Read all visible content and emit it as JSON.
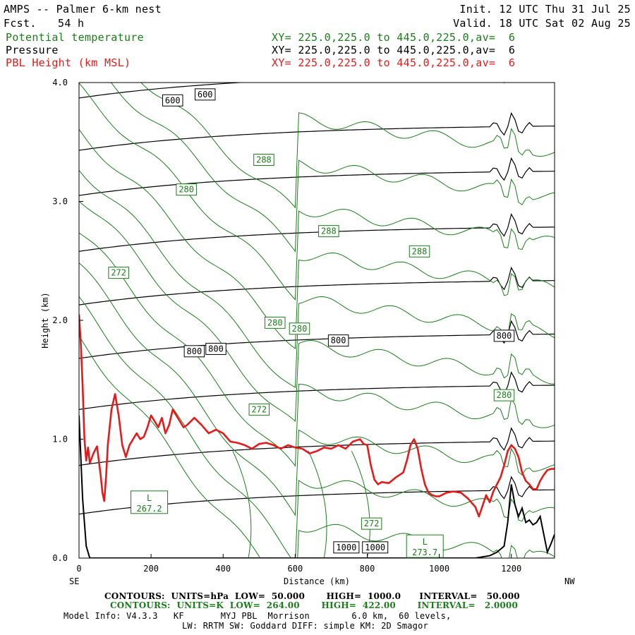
{
  "header": {
    "title": "AMPS -- Palmer 6-km nest",
    "fcst_label": "Fcst.",
    "fcst_value": "54 h",
    "init": "Init. 12 UTC Thu 31 Jul 25",
    "valid": "Valid. 18 UTC Sat 02 Aug 25"
  },
  "legend": [
    {
      "name": "Potential temperature",
      "xy": "XY= 225.0,225.0 to 445.0,225.0,av=  6",
      "color": "#1a7d1a"
    },
    {
      "name": "Pressure",
      "xy": "XY= 225.0,225.0 to 445.0,225.0,av=  6",
      "color": "#000000"
    },
    {
      "name": "PBL Height (km MSL)",
      "xy": "XY= 225.0,225.0 to 445.0,225.0,av=  6",
      "color": "#e51a1a"
    }
  ],
  "footer": {
    "line1": "CONTOURS:  UNITS=hPa  LOW=  50.000       HIGH=  1000.0      INTERVAL=   50.000",
    "line2": "CONTOURS:  UNITS=K  LOW=  264.00       HIGH=  422.00       INTERVAL=   2.0000",
    "line3": "Model Info: V4.3.3   KF       MYJ PBL  Morrison        6.0 km,  60 levels,",
    "line4": "LW: RRTM SW: Goddard DIFF: simple KM: 2D Smagor"
  },
  "chart_data": {
    "type": "line",
    "xlabel": "Distance (km)",
    "ylabel": "Height (km)",
    "xlim": [
      0,
      1320
    ],
    "ylim": [
      0,
      4.0
    ],
    "x_ticks": [
      0,
      200,
      400,
      600,
      800,
      1000,
      1200
    ],
    "y_ticks": [
      0.0,
      1.0,
      2.0,
      3.0,
      4.0
    ],
    "x_tick_labels": [
      "0",
      "200",
      "400",
      "600",
      "800",
      "1000",
      "1200"
    ],
    "y_tick_labels": [
      "0.0",
      "1.0",
      "2.0",
      "3.0",
      "4.0"
    ],
    "left_end_label": "SE",
    "right_end_label": "NW",
    "colors": {
      "pbl": "#e51a1a",
      "theta": "#1a7d1a",
      "pressure": "#000000"
    },
    "pbl_height": {
      "name": "PBL Height (km MSL)",
      "x": [
        0,
        5,
        10,
        15,
        20,
        25,
        30,
        40,
        50,
        60,
        65,
        70,
        75,
        80,
        85,
        90,
        100,
        110,
        120,
        130,
        140,
        150,
        160,
        170,
        180,
        190,
        200,
        210,
        220,
        230,
        240,
        250,
        260,
        270,
        280,
        290,
        300,
        320,
        340,
        360,
        380,
        400,
        420,
        440,
        460,
        480,
        500,
        520,
        540,
        560,
        580,
        600,
        620,
        640,
        660,
        680,
        700,
        720,
        740,
        760,
        780,
        790,
        800,
        810,
        820,
        830,
        840,
        860,
        880,
        900,
        910,
        920,
        930,
        940,
        950,
        960,
        970,
        980,
        990,
        1000,
        1020,
        1040,
        1060,
        1080,
        1100,
        1110,
        1120,
        1130,
        1140,
        1150,
        1160,
        1170,
        1180,
        1190,
        1200,
        1210,
        1220,
        1230,
        1240,
        1250,
        1260,
        1270,
        1280,
        1290,
        1300,
        1310,
        1320
      ],
      "y": [
        2.05,
        1.8,
        1.45,
        1.0,
        0.82,
        0.93,
        0.8,
        0.88,
        0.94,
        0.7,
        0.55,
        0.48,
        0.68,
        0.95,
        1.1,
        1.25,
        1.38,
        1.2,
        0.95,
        0.85,
        0.95,
        1.0,
        1.05,
        1.0,
        1.02,
        1.1,
        1.2,
        1.15,
        1.1,
        1.18,
        1.05,
        1.12,
        1.25,
        1.2,
        1.15,
        1.1,
        1.12,
        1.18,
        1.12,
        1.05,
        1.08,
        1.05,
        0.98,
        0.97,
        0.95,
        0.92,
        0.96,
        0.97,
        0.95,
        0.92,
        0.95,
        0.93,
        0.92,
        0.88,
        0.9,
        0.93,
        0.92,
        0.95,
        0.92,
        0.98,
        1.0,
        0.96,
        0.95,
        0.78,
        0.66,
        0.62,
        0.64,
        0.63,
        0.68,
        0.72,
        0.82,
        0.95,
        1.0,
        0.92,
        0.75,
        0.62,
        0.55,
        0.53,
        0.52,
        0.52,
        0.55,
        0.56,
        0.55,
        0.5,
        0.43,
        0.35,
        0.44,
        0.53,
        0.47,
        0.56,
        0.62,
        0.68,
        0.78,
        0.9,
        0.95,
        0.92,
        0.85,
        0.72,
        0.65,
        0.62,
        0.58,
        0.58,
        0.65,
        0.7,
        0.74,
        0.75,
        0.75
      ]
    },
    "terrain": {
      "x": [
        0,
        10,
        20,
        30,
        40,
        60,
        100,
        200,
        300,
        400,
        500,
        600,
        700,
        800,
        900,
        1000,
        1100,
        1140,
        1160,
        1180,
        1190,
        1200,
        1210,
        1220,
        1230,
        1240,
        1250,
        1260,
        1270,
        1280,
        1290,
        1300,
        1310,
        1320
      ],
      "y": [
        1.2,
        0.5,
        0.1,
        0.0,
        0.0,
        0.0,
        0.0,
        0.0,
        0.0,
        0.0,
        0.0,
        0.0,
        0.0,
        0.0,
        0.0,
        0.0,
        0.0,
        0.02,
        0.05,
        0.1,
        0.3,
        0.62,
        0.45,
        0.35,
        0.42,
        0.3,
        0.32,
        0.28,
        0.3,
        0.35,
        0.2,
        0.05,
        0.12,
        0.2
      ]
    },
    "pressure_contours_hPa": [
      {
        "level": 600,
        "label": "600"
      },
      {
        "level": 800,
        "label": "800"
      },
      {
        "level": 1000,
        "label": "1000"
      }
    ],
    "theta_contours_K": [
      {
        "level": 288,
        "label": "288"
      },
      {
        "level": 280,
        "label": "280"
      },
      {
        "level": 272,
        "label": "272"
      }
    ],
    "contour_labels": [
      {
        "text": "600",
        "color": "#000000",
        "x": 260,
        "y": 3.85
      },
      {
        "text": "600",
        "color": "#000000",
        "x": 350,
        "y": 3.9
      },
      {
        "text": "800",
        "color": "#000000",
        "x": 320,
        "y": 1.74
      },
      {
        "text": "800",
        "color": "#000000",
        "x": 380,
        "y": 1.76
      },
      {
        "text": "800",
        "color": "#000000",
        "x": 720,
        "y": 1.83
      },
      {
        "text": "800",
        "color": "#000000",
        "x": 1180,
        "y": 1.87
      },
      {
        "text": "1000",
        "color": "#000000",
        "x": 742,
        "y": 0.09
      },
      {
        "text": "1000",
        "color": "#000000",
        "x": 822,
        "y": 0.09
      },
      {
        "text": "288",
        "color": "#1a7d1a",
        "x": 513,
        "y": 3.35
      },
      {
        "text": "288",
        "color": "#1a7d1a",
        "x": 693,
        "y": 2.75
      },
      {
        "text": "288",
        "color": "#1a7d1a",
        "x": 945,
        "y": 2.58
      },
      {
        "text": "280",
        "color": "#1a7d1a",
        "x": 298,
        "y": 3.1
      },
      {
        "text": "280",
        "color": "#1a7d1a",
        "x": 544,
        "y": 1.98
      },
      {
        "text": "280",
        "color": "#1a7d1a",
        "x": 612,
        "y": 1.93
      },
      {
        "text": "280",
        "color": "#1a7d1a",
        "x": 1180,
        "y": 1.37
      },
      {
        "text": "272",
        "color": "#1a7d1a",
        "x": 110,
        "y": 2.4
      },
      {
        "text": "272",
        "color": "#1a7d1a",
        "x": 500,
        "y": 1.25
      },
      {
        "text": "272",
        "color": "#1a7d1a",
        "x": 812,
        "y": 0.29
      }
    ],
    "lows": [
      {
        "symbol": "L",
        "value": "267.2",
        "x": 195,
        "y": 0.47
      },
      {
        "symbol": "L",
        "value": "273.7",
        "x": 960,
        "y": 0.1
      }
    ]
  }
}
